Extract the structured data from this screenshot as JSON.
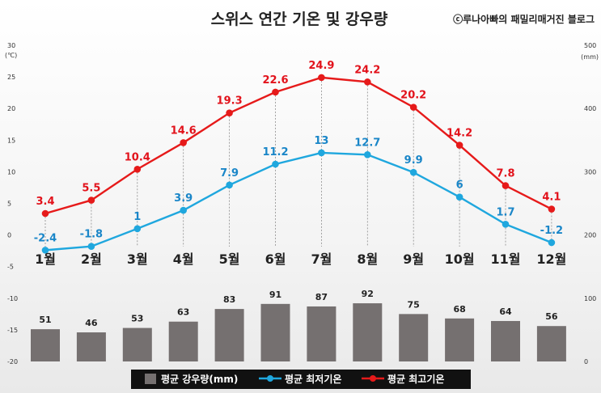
{
  "title": "스위스 연간 기온 및 강우량",
  "credit": "ⓒ루나아빠의 패밀리매거진 블로그",
  "chart_data": {
    "type": "line",
    "categories": [
      "1월",
      "2월",
      "3월",
      "4월",
      "5월",
      "6월",
      "7월",
      "8월",
      "9월",
      "10월",
      "11월",
      "12월"
    ],
    "series": [
      {
        "name": "평균 강우량(mm)",
        "type": "bar",
        "axis": "right",
        "color": "#757070",
        "values": [
          51,
          46,
          53,
          63,
          83,
          91,
          87,
          92,
          75,
          68,
          64,
          56
        ]
      },
      {
        "name": "평균 최저기온",
        "type": "line",
        "axis": "left",
        "color": "#1fa7de",
        "values": [
          -2.4,
          -1.8,
          1,
          3.9,
          7.9,
          11.2,
          13,
          12.7,
          9.9,
          6,
          1.7,
          -1.2
        ]
      },
      {
        "name": "평균 최고기온",
        "type": "line",
        "axis": "left",
        "color": "#e61a1a",
        "values": [
          3.4,
          5.5,
          10.4,
          14.6,
          19.3,
          22.6,
          24.9,
          24.2,
          20.2,
          14.2,
          7.8,
          4.1
        ]
      }
    ],
    "y_left": {
      "unit": "(℃)",
      "ylim": [
        -20,
        30
      ],
      "ticks": [
        "30",
        "25",
        "20",
        "15",
        "10",
        "5",
        "0",
        "-5",
        "-10",
        "-15",
        "-20"
      ]
    },
    "y_right": {
      "unit": "(mm)",
      "ylim": [
        0,
        500
      ],
      "ticks": [
        "500",
        "400",
        "300",
        "200",
        "100",
        "0"
      ]
    },
    "legend_position": "bottom",
    "grid": false
  }
}
